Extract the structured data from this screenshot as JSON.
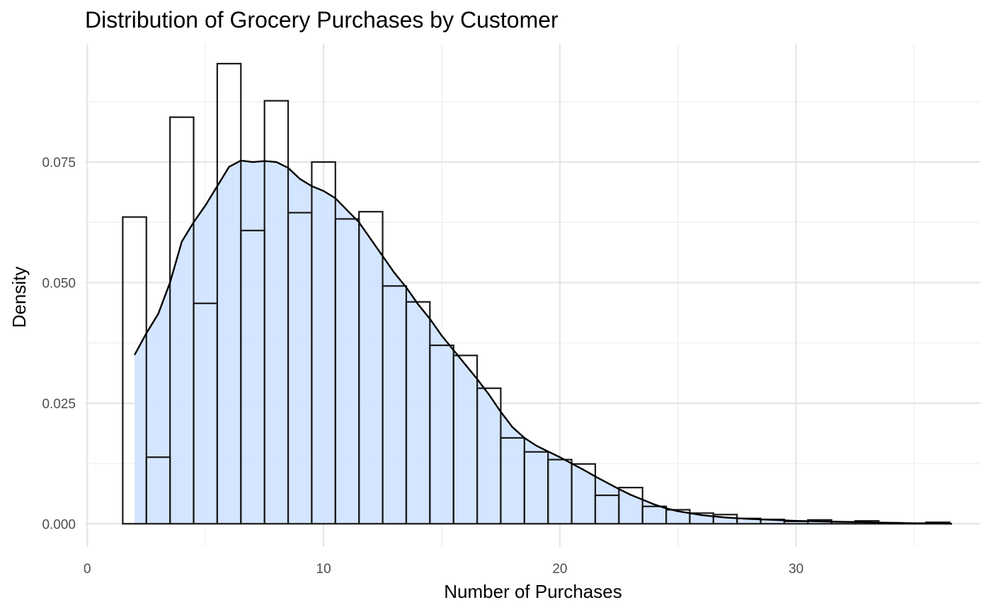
{
  "chart_data": {
    "type": "histogram",
    "title": "Distribution of Grocery Purchases by Customer",
    "xlabel": "Number of Purchases",
    "ylabel": "Density",
    "xlim": [
      -0.1,
      37.8
    ],
    "ylim": [
      -0.0048,
      0.0995
    ],
    "x_ticks": [
      0,
      10,
      20,
      30
    ],
    "x_tick_labels": [
      "0",
      "10",
      "20",
      "30"
    ],
    "y_ticks": [
      0,
      0.025,
      0.05,
      0.075
    ],
    "y_tick_labels": [
      "0.000",
      "0.025",
      "0.050",
      "0.075"
    ],
    "grid": true,
    "legend": "none",
    "bin_width": 1,
    "bin_starts": [
      1.5,
      2.5,
      3.5,
      4.5,
      5.5,
      6.5,
      7.5,
      8.5,
      9.5,
      10.5,
      11.5,
      12.5,
      13.5,
      14.5,
      15.5,
      16.5,
      17.5,
      18.5,
      19.5,
      20.5,
      21.5,
      22.5,
      23.5,
      24.5,
      25.5,
      26.5,
      27.5,
      28.5,
      29.5,
      30.5,
      31.5,
      32.5,
      33.5,
      34.5,
      35.5
    ],
    "bin_densities": [
      0.0636,
      0.0138,
      0.0843,
      0.0457,
      0.0954,
      0.0608,
      0.0877,
      0.0645,
      0.075,
      0.0632,
      0.0647,
      0.0493,
      0.046,
      0.037,
      0.0349,
      0.0281,
      0.0178,
      0.0149,
      0.0133,
      0.0124,
      0.0059,
      0.0075,
      0.0036,
      0.0029,
      0.0022,
      0.0019,
      0.0011,
      0.0009,
      0.0005,
      0.0008,
      0.0004,
      0.0006,
      0.0002,
      0.0001,
      0.0003
    ],
    "density_curve": {
      "x": [
        2.0,
        2.5,
        3.0,
        3.5,
        4.0,
        4.5,
        5.0,
        5.5,
        6.0,
        6.5,
        7.0,
        7.5,
        8.0,
        8.5,
        9.0,
        9.5,
        10.0,
        10.5,
        11.0,
        11.5,
        12.0,
        12.5,
        13.0,
        13.5,
        14.0,
        14.5,
        15.0,
        15.5,
        16.0,
        16.5,
        17.0,
        17.5,
        18.0,
        18.5,
        19.0,
        19.5,
        20.0,
        20.5,
        21.0,
        21.5,
        22.0,
        22.5,
        23.0,
        23.5,
        24.0,
        24.5,
        25.0,
        26.0,
        27.0,
        28.0,
        29.0,
        30.0,
        31.0,
        32.0,
        33.0,
        34.0,
        35.0,
        36.0,
        36.6
      ],
      "y": [
        0.035,
        0.0395,
        0.0435,
        0.05,
        0.0585,
        0.0625,
        0.066,
        0.07,
        0.074,
        0.0753,
        0.075,
        0.0752,
        0.075,
        0.0738,
        0.0715,
        0.07,
        0.069,
        0.0675,
        0.065,
        0.0625,
        0.059,
        0.0555,
        0.052,
        0.049,
        0.0455,
        0.0425,
        0.039,
        0.036,
        0.033,
        0.03,
        0.0268,
        0.0232,
        0.02,
        0.0178,
        0.0162,
        0.015,
        0.0138,
        0.0125,
        0.0112,
        0.0098,
        0.0085,
        0.0072,
        0.006,
        0.005,
        0.004,
        0.0032,
        0.0026,
        0.0018,
        0.0013,
        0.001,
        0.0008,
        0.0006,
        0.0005,
        0.0004,
        0.0003,
        0.0002,
        0.0001,
        0.0001,
        0.0
      ]
    },
    "colors": {
      "density_fill": "#cfe2ff",
      "density_fill_opacity": 0.9,
      "bar_stroke": "#1a1a1a",
      "curve_stroke": "#000000",
      "grid_major": "#e5e5e5",
      "grid_minor": "#f0f0f0"
    }
  }
}
